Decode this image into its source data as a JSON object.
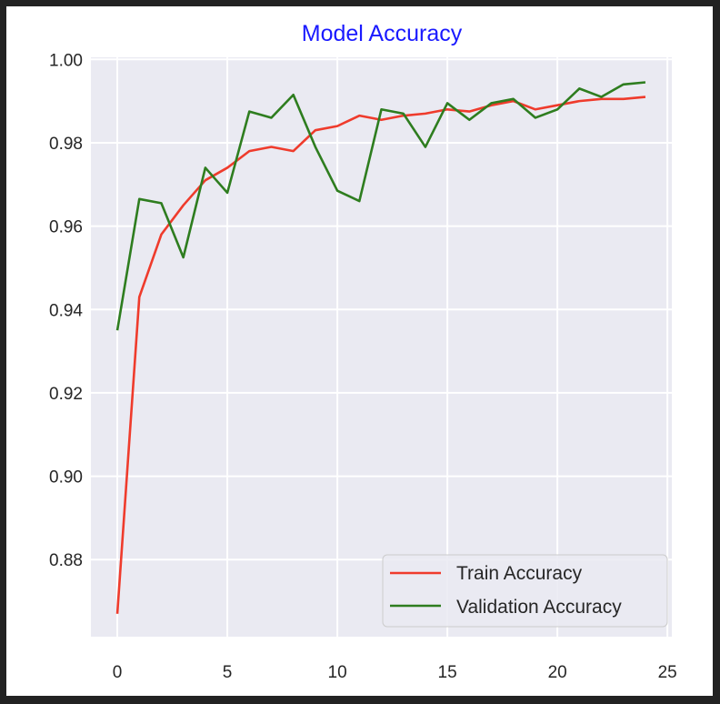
{
  "chart_data": {
    "type": "line",
    "title": "Model Accuracy",
    "title_color": "#1a1aff",
    "xlabel": "",
    "ylabel": "",
    "xlim": [
      -1.2,
      25.2
    ],
    "ylim": [
      0.8615,
      1.0005
    ],
    "xticks": [
      0,
      5,
      10,
      15,
      20,
      25
    ],
    "yticks": [
      0.88,
      0.9,
      0.92,
      0.94,
      0.96,
      0.98,
      1.0
    ],
    "ytick_labels": [
      "0.88",
      "0.90",
      "0.92",
      "0.94",
      "0.96",
      "0.98",
      "1.00"
    ],
    "grid": true,
    "background": "#eaeaf2",
    "legend_position": "lower-right",
    "x": [
      0,
      1,
      2,
      3,
      4,
      5,
      6,
      7,
      8,
      9,
      10,
      11,
      12,
      13,
      14,
      15,
      16,
      17,
      18,
      19,
      20,
      21,
      22,
      23,
      24
    ],
    "series": [
      {
        "name": "Train Accuracy",
        "color": "#ef3b2c",
        "values": [
          0.867,
          0.943,
          0.958,
          0.965,
          0.971,
          0.974,
          0.978,
          0.979,
          0.978,
          0.983,
          0.984,
          0.9865,
          0.9855,
          0.9865,
          0.987,
          0.988,
          0.9875,
          0.989,
          0.99,
          0.988,
          0.989,
          0.99,
          0.9905,
          0.9905,
          0.991
        ]
      },
      {
        "name": "Validation Accuracy",
        "color": "#2e7d1f",
        "values": [
          0.935,
          0.9665,
          0.9655,
          0.9525,
          0.974,
          0.968,
          0.9875,
          0.986,
          0.9915,
          0.979,
          0.9685,
          0.966,
          0.988,
          0.987,
          0.979,
          0.9895,
          0.9855,
          0.9895,
          0.9905,
          0.986,
          0.988,
          0.993,
          0.991,
          0.994,
          0.9945
        ]
      }
    ]
  }
}
